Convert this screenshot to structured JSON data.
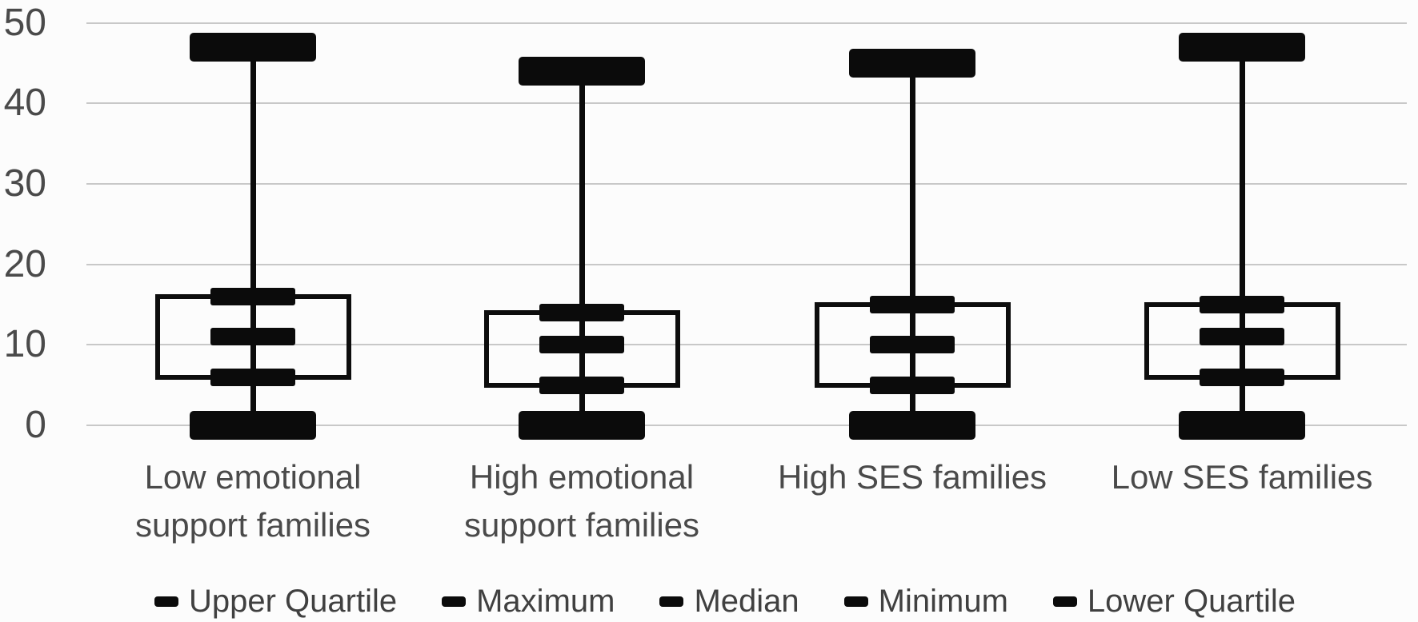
{
  "chart_data": {
    "type": "boxplot",
    "title": "",
    "xlabel": "",
    "ylabel": "",
    "ylim": [
      0,
      50
    ],
    "yticks": [
      50,
      40,
      30,
      20,
      10,
      0
    ],
    "grid": "horizontal",
    "legend_position": "bottom",
    "categories": [
      {
        "label": "Low emotional support families",
        "lines": [
          "Low emotional",
          "support families"
        ]
      },
      {
        "label": "High emotional support families",
        "lines": [
          "High emotional",
          "support families"
        ]
      },
      {
        "label": "High SES families",
        "lines": [
          "High SES families"
        ]
      },
      {
        "label": "Low SES families",
        "lines": [
          "Low SES families"
        ]
      }
    ],
    "series": [
      {
        "category": "Low emotional support families",
        "minimum": 0,
        "lower_quartile": 6,
        "median": 11,
        "upper_quartile": 16,
        "maximum": 47
      },
      {
        "category": "High emotional support families",
        "minimum": 0,
        "lower_quartile": 5,
        "median": 10,
        "upper_quartile": 14,
        "maximum": 44
      },
      {
        "category": "High SES families",
        "minimum": 0,
        "lower_quartile": 5,
        "median": 10,
        "upper_quartile": 15,
        "maximum": 45
      },
      {
        "category": "Low SES families",
        "minimum": 0,
        "lower_quartile": 6,
        "median": 11,
        "upper_quartile": 15,
        "maximum": 47
      }
    ],
    "legend": [
      "Upper Quartile",
      "Maximum",
      "Median",
      "Minimum",
      "Lower Quartile"
    ]
  },
  "colors": {
    "marker": "#0b0b0b",
    "box_outline": "#0d0d0d",
    "gridline": "#c8c8c8",
    "axis_text": "#4a4a4a",
    "category_text": "#4a4a4a",
    "legend_text": "#404040",
    "background": "#fcfcfc"
  }
}
